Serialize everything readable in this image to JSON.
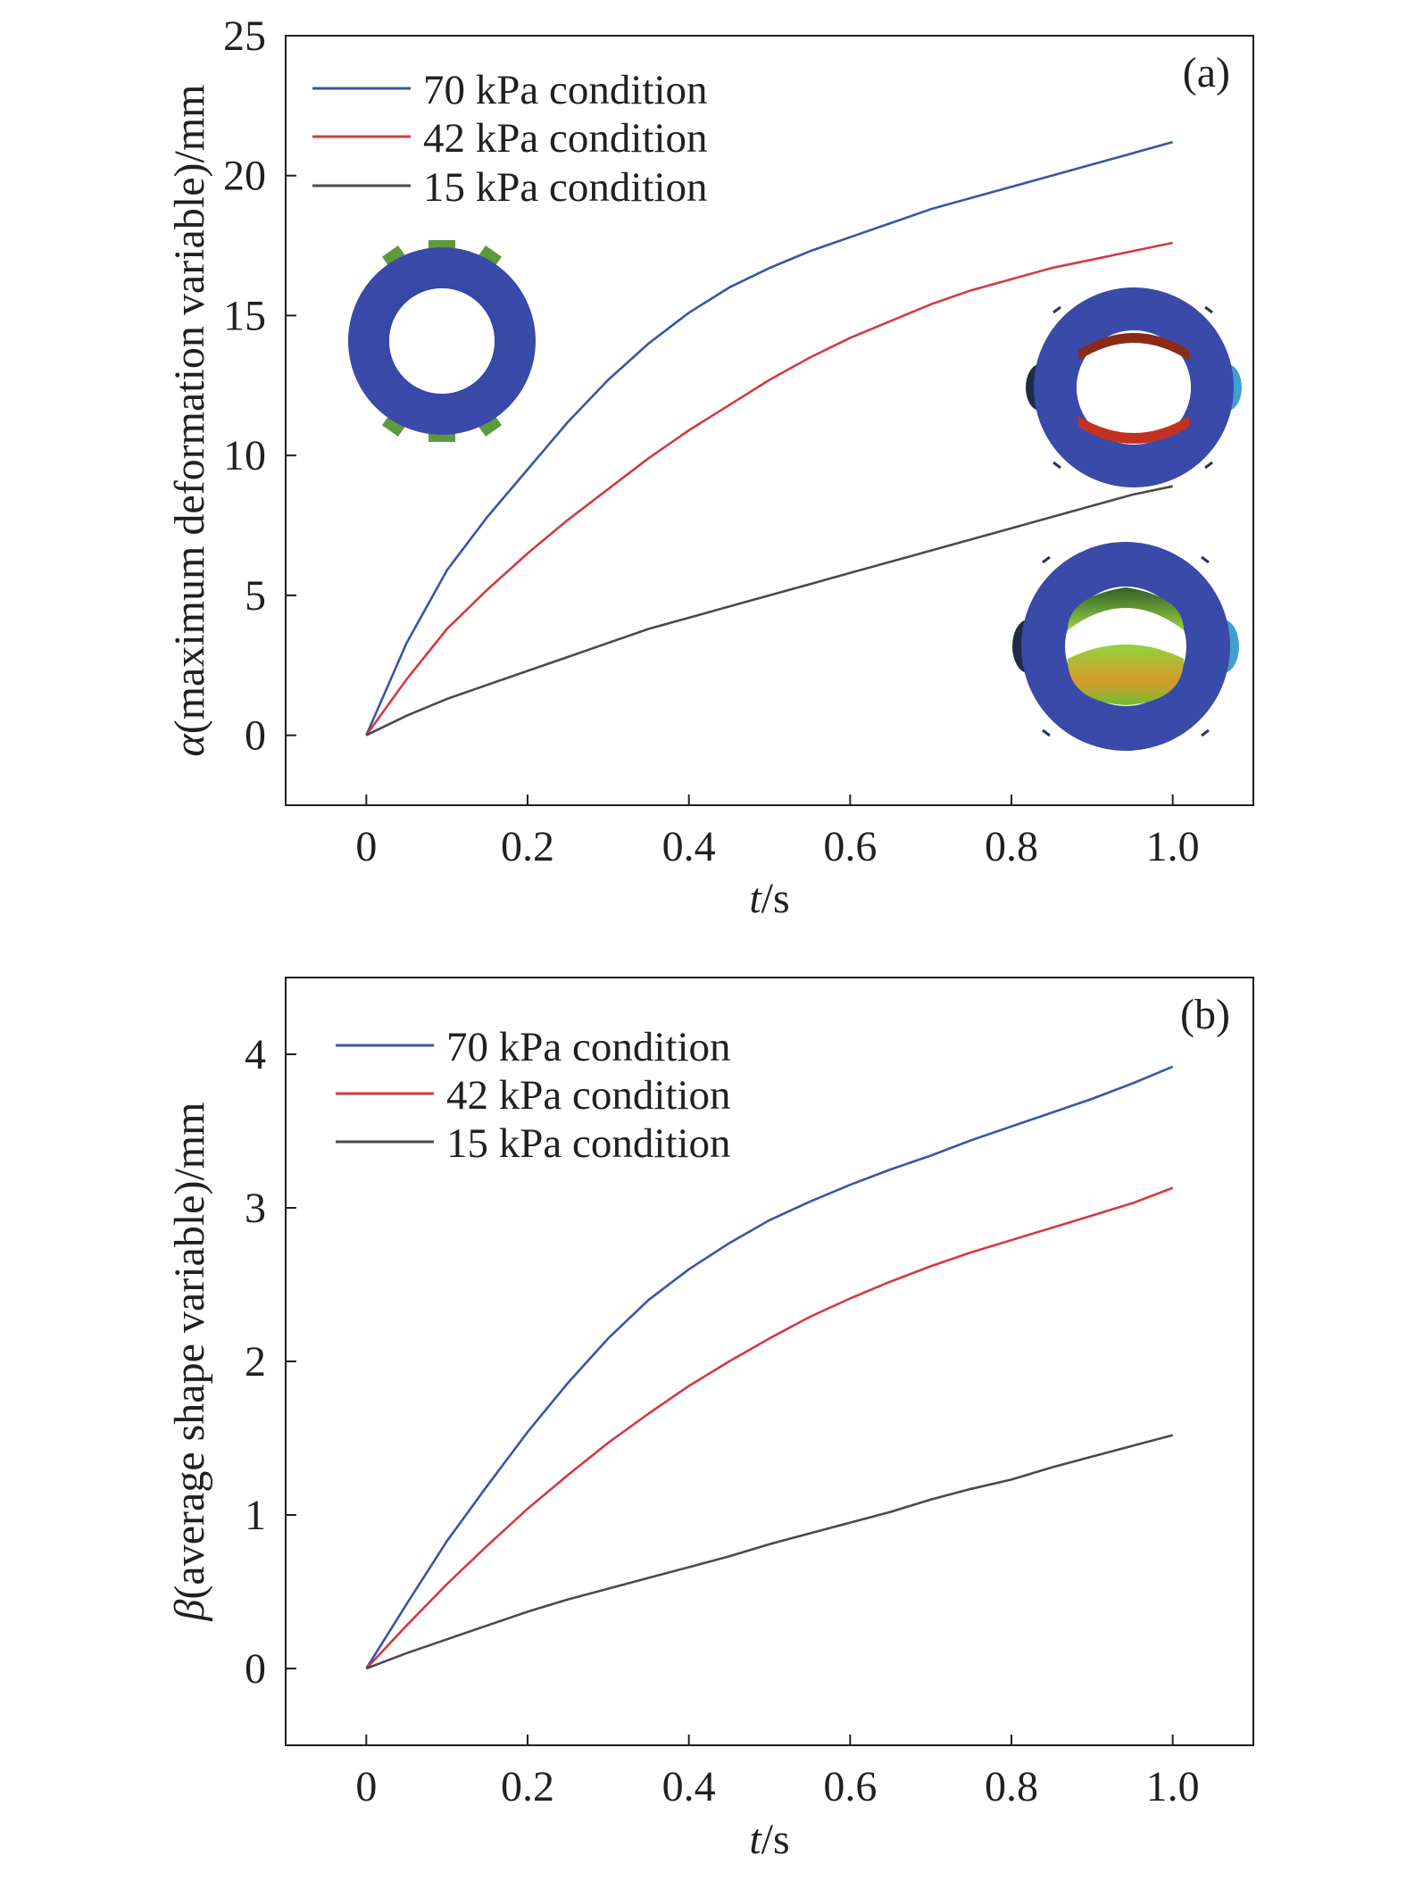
{
  "chart_data": [
    {
      "panel": "(a)",
      "type": "line",
      "xlabel": {
        "italic": "t",
        "rest": "/s"
      },
      "ylabel": {
        "italic": "α",
        "rest": "(maximum deformation variable)/mm"
      },
      "xlim": [
        -0.1,
        1.1
      ],
      "ylim": [
        -2.5,
        25
      ],
      "xticks": [
        0,
        0.2,
        0.4,
        0.6,
        0.8,
        1.0
      ],
      "xtick_labels": [
        "0",
        "0.2",
        "0.4",
        "0.6",
        "0.8",
        "1.0"
      ],
      "yticks": [
        0,
        5,
        10,
        15,
        20,
        25
      ],
      "ytick_labels": [
        "0",
        "5",
        "10",
        "15",
        "20",
        "25"
      ],
      "grid": false,
      "legend_position": "top-left",
      "x": [
        0,
        0.05,
        0.1,
        0.15,
        0.2,
        0.25,
        0.3,
        0.35,
        0.4,
        0.45,
        0.5,
        0.55,
        0.6,
        0.65,
        0.7,
        0.75,
        0.8,
        0.85,
        0.9,
        0.95,
        1.0
      ],
      "series": [
        {
          "name": "70 kPa condition",
          "color": "#3a55a4",
          "values": [
            0,
            3.3,
            5.9,
            7.8,
            9.5,
            11.2,
            12.7,
            14.0,
            15.1,
            16.0,
            16.7,
            17.3,
            17.8,
            18.3,
            18.8,
            19.2,
            19.6,
            20.0,
            20.4,
            20.8,
            21.2
          ]
        },
        {
          "name": "42 kPa condition",
          "color": "#d43a43",
          "values": [
            0,
            2.0,
            3.8,
            5.2,
            6.5,
            7.7,
            8.8,
            9.9,
            10.9,
            11.8,
            12.7,
            13.5,
            14.2,
            14.8,
            15.4,
            15.9,
            16.3,
            16.7,
            17.0,
            17.3,
            17.6
          ]
        },
        {
          "name": "15 kPa condition",
          "color": "#4a4a4a",
          "values": [
            0,
            0.7,
            1.3,
            1.8,
            2.3,
            2.8,
            3.3,
            3.8,
            4.2,
            4.6,
            5.0,
            5.4,
            5.8,
            6.2,
            6.6,
            7.0,
            7.4,
            7.8,
            8.2,
            8.6,
            8.9
          ]
        }
      ]
    },
    {
      "panel": "(b)",
      "type": "line",
      "xlabel": {
        "italic": "t",
        "rest": "/s"
      },
      "ylabel": {
        "italic": "β",
        "rest": "(average shape variable)/mm"
      },
      "xlim": [
        -0.1,
        1.1
      ],
      "ylim": [
        -0.5,
        4.5
      ],
      "xticks": [
        0,
        0.2,
        0.4,
        0.6,
        0.8,
        1.0
      ],
      "xtick_labels": [
        "0",
        "0.2",
        "0.4",
        "0.6",
        "0.8",
        "1.0"
      ],
      "yticks": [
        0,
        1,
        2,
        3,
        4
      ],
      "ytick_labels": [
        "0",
        "1",
        "2",
        "3",
        "4"
      ],
      "grid": false,
      "legend_position": "top-left",
      "x": [
        0,
        0.05,
        0.1,
        0.15,
        0.2,
        0.25,
        0.3,
        0.35,
        0.4,
        0.45,
        0.5,
        0.55,
        0.6,
        0.65,
        0.7,
        0.75,
        0.8,
        0.85,
        0.9,
        0.95,
        1.0
      ],
      "series": [
        {
          "name": "70 kPa condition",
          "color": "#3a55a4",
          "values": [
            0,
            0.42,
            0.83,
            1.19,
            1.54,
            1.86,
            2.15,
            2.4,
            2.6,
            2.77,
            2.92,
            3.04,
            3.15,
            3.25,
            3.34,
            3.44,
            3.53,
            3.62,
            3.71,
            3.81,
            3.92
          ]
        },
        {
          "name": "42 kPa condition",
          "color": "#d43a43",
          "values": [
            0,
            0.28,
            0.55,
            0.8,
            1.04,
            1.26,
            1.47,
            1.66,
            1.84,
            2.0,
            2.15,
            2.29,
            2.41,
            2.52,
            2.62,
            2.71,
            2.79,
            2.87,
            2.95,
            3.03,
            3.13
          ]
        },
        {
          "name": "15 kPa condition",
          "color": "#4a4a4a",
          "values": [
            0,
            0.1,
            0.19,
            0.28,
            0.37,
            0.45,
            0.52,
            0.59,
            0.66,
            0.73,
            0.81,
            0.88,
            0.95,
            1.02,
            1.1,
            1.17,
            1.23,
            1.31,
            1.38,
            1.45,
            1.52
          ]
        }
      ]
    }
  ]
}
